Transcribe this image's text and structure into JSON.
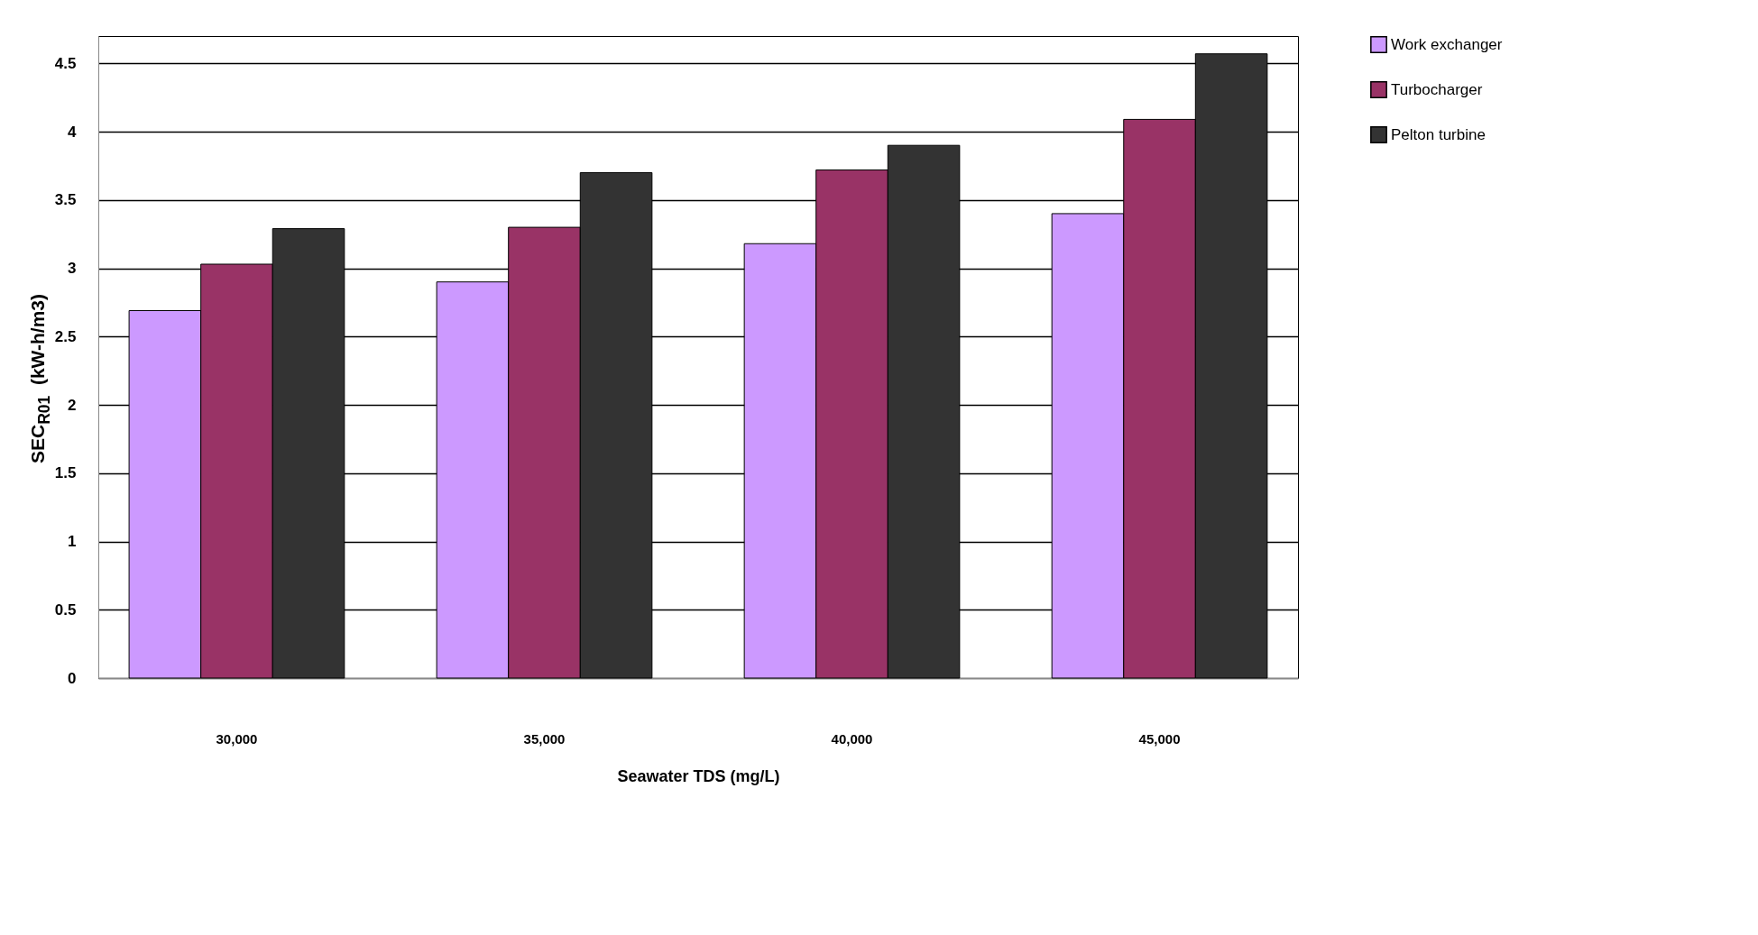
{
  "chart_data": {
    "type": "bar",
    "xlabel": "Seawater TDS (mg/L)",
    "ylabel": "SEC$_{R01}$  (kW-h/m3)",
    "categories": [
      "30,000",
      "35,000",
      "40,000",
      "45,000"
    ],
    "series": [
      {
        "name": "Work exchanger",
        "color": "#cc99ff",
        "values": [
          2.69,
          2.9,
          3.18,
          3.4
        ]
      },
      {
        "name": "Turbocharger",
        "color": "#993366",
        "values": [
          3.03,
          3.3,
          3.72,
          4.09
        ]
      },
      {
        "name": "Pelton turbine",
        "color": "#333333",
        "values": [
          3.29,
          3.7,
          3.9,
          4.57
        ]
      }
    ],
    "ylim": [
      0,
      4.7
    ],
    "yticks": [
      0,
      0.5,
      1,
      1.5,
      2,
      2.5,
      3,
      3.5,
      4,
      4.5
    ],
    "grid": "y",
    "legend": "right"
  }
}
